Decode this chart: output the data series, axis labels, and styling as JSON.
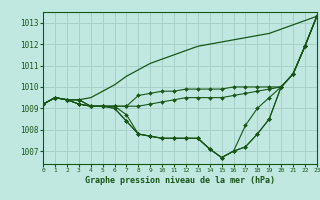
{
  "title": "Graphe pression niveau de la mer (hPa)",
  "background_color": "#c0e8e0",
  "grid_color": "#a8d0c8",
  "line_color": "#1a5518",
  "x_hours": [
    0,
    1,
    2,
    3,
    4,
    5,
    6,
    7,
    8,
    9,
    10,
    11,
    12,
    13,
    14,
    15,
    16,
    17,
    18,
    19,
    20,
    21,
    22,
    23
  ],
  "series": [
    [
      1009.2,
      1009.5,
      1009.4,
      1009.4,
      1009.1,
      1009.1,
      1009.1,
      1009.1,
      1009.6,
      1009.7,
      1009.8,
      1009.8,
      1009.9,
      1009.9,
      1009.9,
      1009.9,
      1010.0,
      1010.0,
      1010.0,
      1010.0,
      1010.0,
      1010.6,
      1011.9,
      1013.3
    ],
    [
      1009.2,
      1009.5,
      1009.4,
      1009.4,
      1009.1,
      1009.1,
      1009.1,
      1009.1,
      1009.1,
      1009.2,
      1009.3,
      1009.4,
      1009.5,
      1009.5,
      1009.5,
      1009.5,
      1009.6,
      1009.7,
      1009.8,
      1009.9,
      1010.0,
      1010.6,
      1011.9,
      1013.3
    ],
    [
      1009.2,
      1009.5,
      1009.4,
      1009.2,
      1009.1,
      1009.1,
      1009.1,
      1008.7,
      1007.8,
      1007.7,
      1007.6,
      1007.6,
      1007.6,
      1007.6,
      1007.1,
      1006.7,
      1007.0,
      1007.2,
      1007.8,
      1008.5,
      1010.0,
      1010.6,
      1011.9,
      1013.3
    ],
    [
      1009.2,
      1009.5,
      1009.4,
      1009.2,
      1009.1,
      1009.1,
      1009.0,
      1008.4,
      1007.8,
      1007.7,
      1007.6,
      1007.6,
      1007.6,
      1007.6,
      1007.1,
      1006.7,
      1007.0,
      1007.2,
      1007.8,
      1008.5,
      1010.0,
      1010.6,
      1011.9,
      1013.3
    ],
    [
      1009.2,
      1009.5,
      1009.4,
      1009.2,
      1009.1,
      1009.1,
      1009.0,
      1008.4,
      1007.8,
      1007.7,
      1007.6,
      1007.6,
      1007.6,
      1007.6,
      1007.1,
      1006.7,
      1007.0,
      1008.2,
      1009.0,
      1009.5,
      1010.0,
      1010.6,
      1011.9,
      1013.3
    ]
  ],
  "top_line": [
    1009.2,
    1009.5,
    1009.4,
    1009.4,
    1009.5,
    1009.8,
    1010.1,
    1010.5,
    1010.8,
    1011.1,
    1011.3,
    1011.5,
    1011.7,
    1011.9,
    1012.0,
    1012.1,
    1012.2,
    1012.3,
    1012.4,
    1012.5,
    1012.7,
    1012.9,
    1013.1,
    1013.3
  ],
  "ylim": [
    1006.4,
    1013.5
  ],
  "yticks": [
    1007,
    1008,
    1009,
    1010,
    1011,
    1012,
    1013
  ],
  "xlim": [
    0,
    23
  ]
}
